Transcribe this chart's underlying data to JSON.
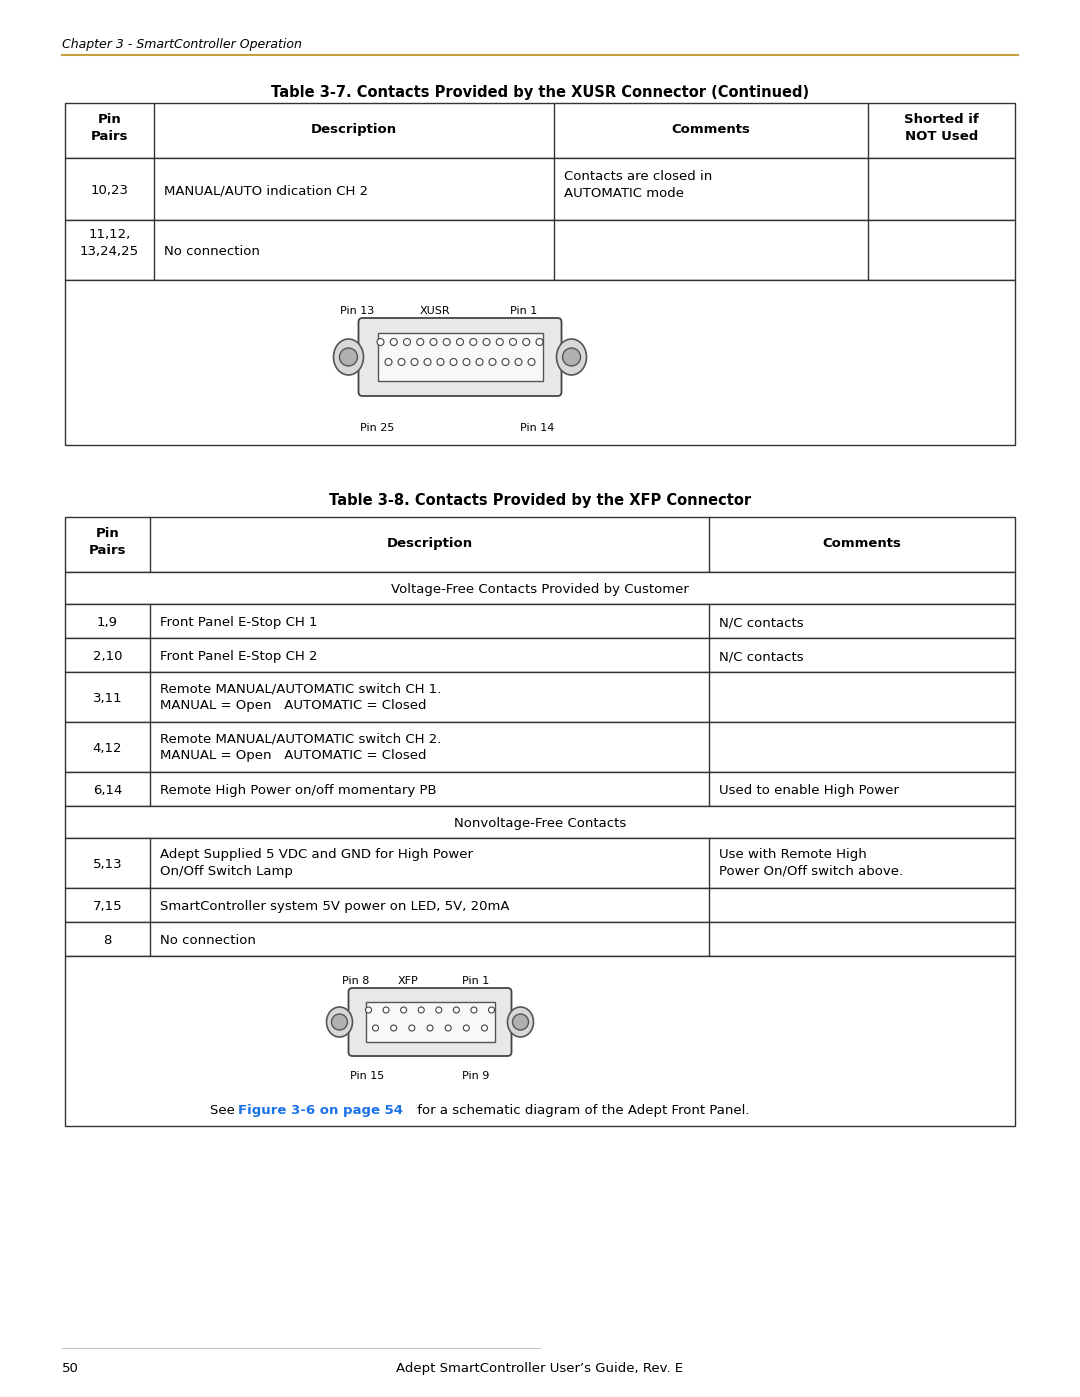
{
  "page_header": "Chapter 3 - SmartController Operation",
  "header_line_color": "#C8A040",
  "table1_title": "Table 3-7. Contacts Provided by the XUSR Connector (Continued)",
  "table1_headers": [
    "Pin\nPairs",
    "Description",
    "Comments",
    "Shorted if\nNOT Used"
  ],
  "table2_title": "Table 3-8. Contacts Provided by the XFP Connector",
  "table2_headers": [
    "Pin\nPairs",
    "Description",
    "Comments"
  ],
  "page_number": "50",
  "page_footer": "Adept SmartController User’s Guide, Rev. E",
  "bg_color": "#ffffff",
  "border_color": "#333333",
  "link_color": "#1a73e8"
}
